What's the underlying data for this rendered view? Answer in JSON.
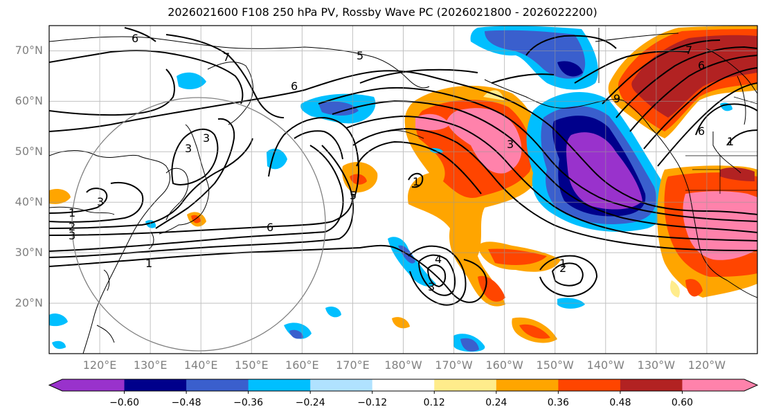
{
  "title": "2026021600 F108 250 hPa PV, Rossby Wave PC (2026021800 - 2026022200)",
  "map": {
    "lat_labels": [
      "70°N",
      "60°N",
      "50°N",
      "40°N",
      "30°N",
      "20°N"
    ],
    "lat_values": [
      70,
      60,
      50,
      40,
      30,
      20
    ],
    "lon_labels": [
      "120°E",
      "130°E",
      "140°E",
      "150°E",
      "160°E",
      "170°E",
      "180°W",
      "170°W",
      "160°W",
      "150°W",
      "140°W",
      "130°W",
      "120°W"
    ],
    "lon_values": [
      120,
      130,
      140,
      150,
      160,
      170,
      180,
      190,
      200,
      210,
      220,
      230,
      240
    ],
    "lat_range": [
      10,
      75
    ],
    "lon_range": [
      110,
      250
    ],
    "grid": true
  },
  "colorbar": {
    "tick_labels": [
      "−0.60",
      "−0.48",
      "−0.36",
      "−0.24",
      "−0.12",
      "0.12",
      "0.24",
      "0.36",
      "0.48",
      "0.60"
    ],
    "levels": [
      -0.6,
      -0.48,
      -0.36,
      -0.24,
      -0.12,
      0.12,
      0.24,
      0.36,
      0.48,
      0.6
    ],
    "colors": [
      "#9932CC",
      "#00008B",
      "#3A5FCD",
      "#00BFFF",
      "#B0E2FF",
      "#FFFFFF",
      "#FFEC8B",
      "#FFA500",
      "#FF4500",
      "#B22222",
      "#FF82AB"
    ],
    "extend": "both"
  },
  "contour_labels": [
    "6",
    "7",
    "5",
    "6",
    "3",
    "3",
    "1",
    "2",
    "3",
    "1",
    "3",
    "6",
    "5",
    "4",
    "3",
    "1",
    "1",
    "2",
    "3",
    "6",
    "9",
    "7",
    "6",
    "1"
  ]
}
